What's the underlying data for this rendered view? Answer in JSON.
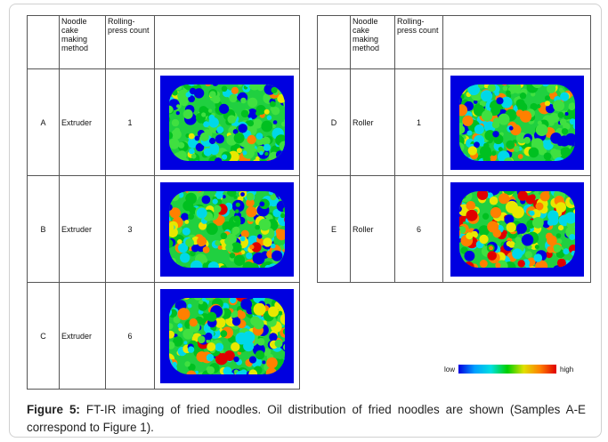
{
  "left_table": {
    "header": [
      "",
      "Noodle cake making method",
      "Rolling-press count",
      ""
    ],
    "rows": [
      [
        "A",
        "Extruder",
        "1"
      ],
      [
        "B",
        "Extruder",
        "3"
      ],
      [
        "C",
        "Extruder",
        "6"
      ]
    ]
  },
  "right_table": {
    "header": [
      "",
      "Noodle cake making method",
      "Rolling-press count",
      ""
    ],
    "rows": [
      [
        "D",
        "Roller",
        "1"
      ],
      [
        "E",
        "Roller",
        "6"
      ]
    ]
  },
  "colorbar": {
    "low": "low",
    "high": "high"
  },
  "caption": {
    "label": "Figure 5:",
    "text": "FT-IR imaging of fried noodles. Oil distribution of fried noodles are shown (Samples A-E correspond to Figure 1)."
  }
}
